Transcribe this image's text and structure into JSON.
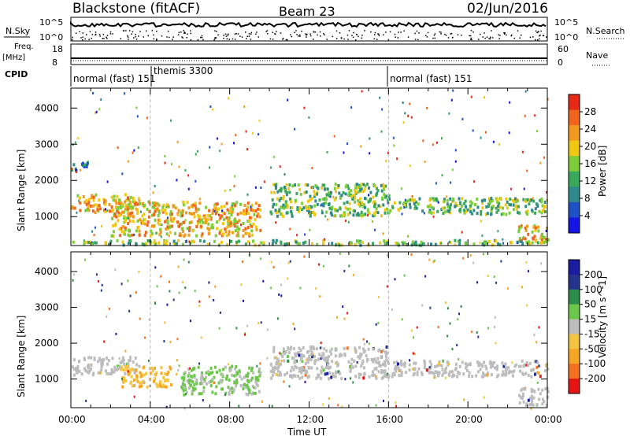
{
  "header": {
    "station": "Blackstone (fitACF)",
    "beam": "Beam 23",
    "date": "02/Jun/2016"
  },
  "summary": {
    "nsky_label": "N.Sky",
    "nsearch_label": "N.Search",
    "nsky_ticks": [
      "10^5",
      "10^0"
    ],
    "nsearch_ticks": [
      "10^5",
      "10^0"
    ],
    "freq_label": "Freq.",
    "freq_unit": "[MHz]",
    "freq_ticks": [
      "18",
      "8"
    ],
    "nave_label": "Nave",
    "nave_ticks": [
      "60",
      "0"
    ],
    "cpid_label": "CPID",
    "cpid_segments": [
      {
        "label": "normal (fast) 151",
        "start_hour": 0
      },
      {
        "label": "themis 3300",
        "start_hour": 4.1
      },
      {
        "label": "normal (fast) 151",
        "start_hour": 16
      }
    ]
  },
  "time_axis": {
    "label": "Time UT",
    "ticks": [
      "00:00",
      "04:00",
      "08:00",
      "12:00",
      "16:00",
      "20:00",
      "00:00"
    ]
  },
  "chart_data": [
    {
      "type": "heatmap",
      "ylabel": "Slant Range [km]",
      "yticks": [
        "1000",
        "2000",
        "3000",
        "4000"
      ],
      "ylim": [
        200,
        4550
      ],
      "xlim_hours": [
        0,
        24
      ],
      "colorbar": {
        "label": "Power [dB]",
        "ticks": [
          "4",
          "8",
          "12",
          "16",
          "20",
          "24",
          "28"
        ],
        "range": [
          0,
          30
        ]
      },
      "scatter_bands": [
        {
          "t0": 0.0,
          "t1": 3.4,
          "r0": 1150,
          "r1": 1650,
          "level": "high"
        },
        {
          "t0": 0.0,
          "t1": 0.8,
          "r0": 2300,
          "r1": 2600,
          "level": "low"
        },
        {
          "t0": 2.0,
          "t1": 9.5,
          "r0": 500,
          "r1": 1450,
          "level": "high"
        },
        {
          "t0": 10.0,
          "t1": 16.0,
          "r0": 1050,
          "r1": 1950,
          "level": "mid"
        },
        {
          "t0": 16.0,
          "t1": 24.0,
          "r0": 1100,
          "r1": 1550,
          "level": "mid"
        },
        {
          "t0": 22.5,
          "t1": 24.0,
          "r0": 300,
          "r1": 800,
          "level": "high"
        },
        {
          "t0": 0.0,
          "t1": 24.0,
          "r0": 250,
          "r1": 380,
          "level": "mid"
        }
      ]
    },
    {
      "type": "heatmap",
      "ylabel": "Slant Range [km]",
      "yticks": [
        "1000",
        "2000",
        "3000",
        "4000"
      ],
      "ylim": [
        200,
        4550
      ],
      "xlim_hours": [
        0,
        24
      ],
      "colorbar": {
        "label": "Velocity [m s^-1]",
        "ticks": [
          "200",
          "100",
          "50",
          "15",
          "-15",
          "-50",
          "-100",
          "-200"
        ],
        "range": [
          -250,
          250
        ]
      },
      "scatter_bands": [
        {
          "t0": 0.0,
          "t1": 3.4,
          "r0": 1150,
          "r1": 1650,
          "level": "ground"
        },
        {
          "t0": 2.5,
          "t1": 5.0,
          "r0": 800,
          "r1": 1400,
          "level": "negative"
        },
        {
          "t0": 5.5,
          "t1": 9.5,
          "r0": 600,
          "r1": 1400,
          "level": "positive"
        },
        {
          "t0": 10.0,
          "t1": 16.0,
          "r0": 1050,
          "r1": 1950,
          "level": "ground"
        },
        {
          "t0": 16.0,
          "t1": 24.0,
          "r0": 1100,
          "r1": 1550,
          "level": "ground"
        },
        {
          "t0": 22.5,
          "t1": 24.0,
          "r0": 300,
          "r1": 800,
          "level": "ground"
        }
      ]
    }
  ],
  "colors": {
    "power_scale": [
      "#1414e6",
      "#1e50c8",
      "#2e8a8a",
      "#3aa85a",
      "#7ccd3a",
      "#f0c814",
      "#f29a1e",
      "#f0641e",
      "#e62814"
    ],
    "velocity_scale": [
      "#e61414",
      "#f2701e",
      "#f5a623",
      "#f4c542",
      "#bdbdbd",
      "#6cc84a",
      "#2c8c4a",
      "#24348c",
      "#1c1ca0"
    ]
  }
}
